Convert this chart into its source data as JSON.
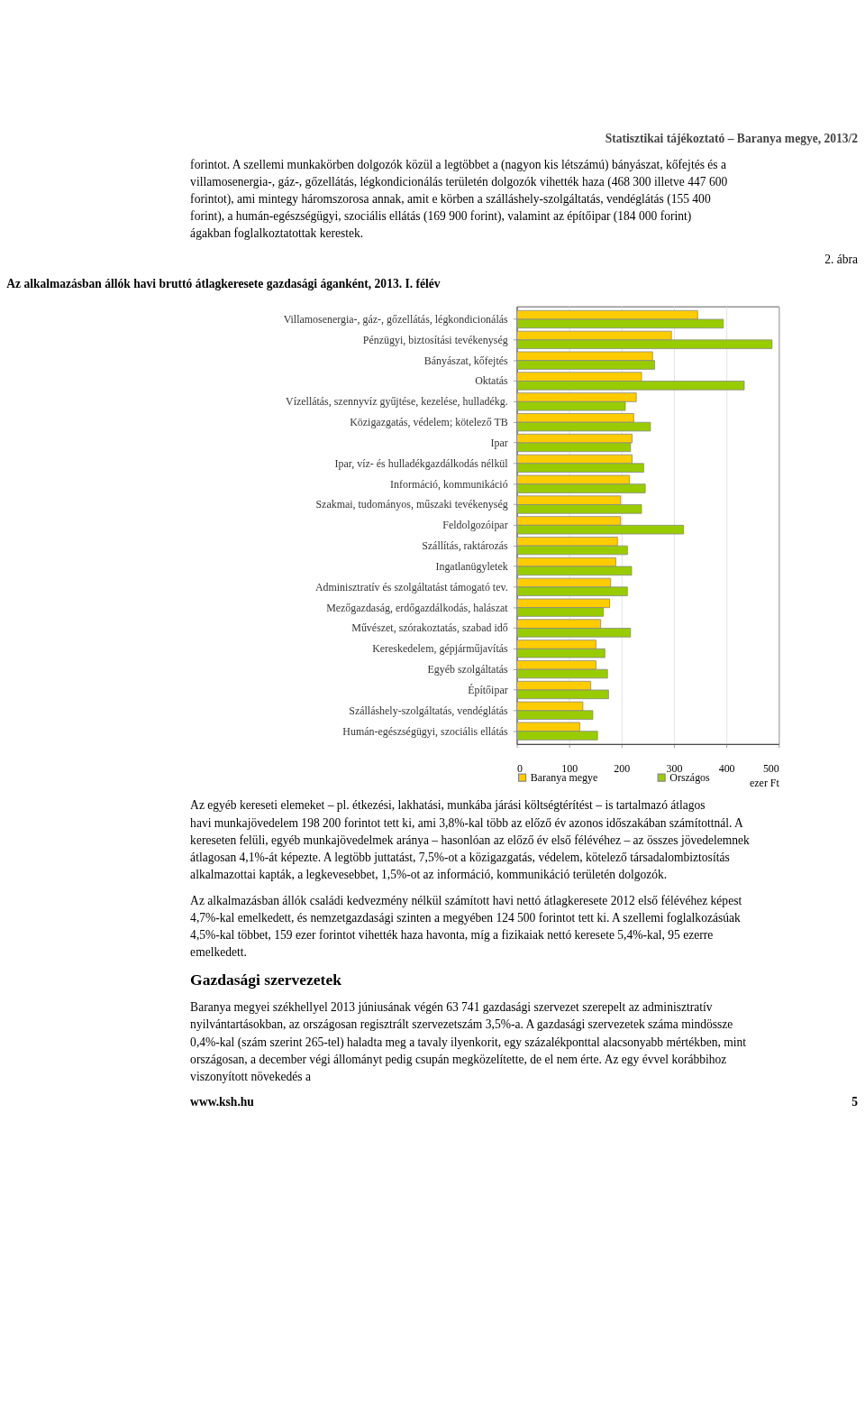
{
  "chart_data": {
    "type": "bar",
    "orientation": "horizontal",
    "title": "Az alkalmazásban állók havi bruttó átlagkeresete gazdasági áganként, 2013. I. félév",
    "categories": [
      "Villamosenergia-, gáz-, gőzellátás, légkondicionálás",
      "Pénzügyi, biztosítási tevékenység",
      "Bányászat, kőfejtés",
      "Oktatás",
      "Vízellátás, szennyvíz gyűjtése, kezelése, hulladékg.",
      "Közigazgatás, védelem; kötelező TB",
      "Ipar",
      "Ipar, víz- és hulladékgazdálkodás nélkül",
      "Információ, kommunikáció",
      "Szakmai, tudományos, műszaki tevékenység",
      "Feldolgozóipar",
      "Szállítás, raktározás",
      "Ingatlanügyletek",
      "Adminisztratív és szolgáltatást támogató tev.",
      "Mezőgazdaság, erdőgazdálkodás, halászat",
      "Művészet, szórakoztatás, szabad idő",
      "Kereskedelem, gépjárműjavítás",
      "Egyéb szolgáltatás",
      "Építőipar",
      "Szálláshely-szolgáltatás, vendéglátás",
      "Humán-egészségügyi, szociális ellátás"
    ],
    "series": [
      {
        "name": "Baranya megye",
        "color": "#ffcc00",
        "values": [
          345,
          295,
          259,
          238,
          228,
          223,
          220,
          220,
          215,
          198,
          198,
          192,
          189,
          179,
          177,
          160,
          151,
          151,
          141,
          126,
          120
        ]
      },
      {
        "name": "Országos",
        "color": "#99cc00",
        "values": [
          394,
          487,
          263,
          434,
          207,
          255,
          217,
          242,
          245,
          238,
          318,
          211,
          219,
          211,
          165,
          217,
          168,
          173,
          175,
          145,
          154
        ]
      }
    ],
    "xlim": [
      0,
      500
    ],
    "xticks": [
      0,
      100,
      200,
      300,
      400,
      500
    ],
    "xlabel": "ezer Ft",
    "grid": "x",
    "legend": "bottom",
    "annotations": [
      "Statisztikai tájékoztató – Baranya megye, 2013/2",
      "forintot. A szellemi munkakörben dolgozók közül a legtöbbet a (nagyon kis létszámú) bányászat, kőfejtés és a villamosenergia-, gáz-, gőzellátás, légkondicionálás területén dolgozók vihették haza (468 300 illetve 447 600 forintot), ami mintegy háromszorosa annak, amit e körben a szálláshely-szolgáltatás, vendéglátás (155 400 forint), a humán-egészségügyi, szociális ellátás (169 900 forint), valamint az építőipar (184 000 forint) ágakban foglalkoztatottak kerestek.",
      "2. ábra",
      "Az egyéb kereseti elemeket – pl. étkezési, lakhatási, munkába járási költségtérítést – is tartalmazó átlagos havi munkajövedelem 198 200 forintot tett ki, ami 3,8%-kal több az előző év azonos időszakában számítottnál. A kereseten felüli, egyéb munkajövedelmek aránya – hasonlóan az előző év első félévéhez – az összes jövedelemnek átlagosan 4,1%-át képezte. A legtöbb juttatást, 7,5%-ot a közigazgatás, védelem, kötelező társadalombiztosítás alkalmazottai kapták, a legkevesebbet, 1,5%-ot az információ, kommunikáció területén dolgozók.",
      "Az alkalmazásban állók családi kedvezmény nélkül számított havi nettó átlagkeresete 2012 első félévéhez képest 4,7%-kal emelkedett, és nemzetgazdasági szinten a megyében 124 500 forintot tett ki. A szellemi foglalkozásúak 4,5%-kal többet, 159 ezer forintot vihették haza havonta, míg a fizikaiak nettó keresete 5,4%-kal, 95 ezerre emelkedett.",
      "Gazdasági szervezetek",
      "Baranya megyei székhellyel 2013 júniusának végén 63 741 gazdasági szervezet szerepelt az adminisztratív nyilvántartásokban, az országosan regisztrált szervezetszám 3,5%-a. A gazdasági szervezetek száma mindössze 0,4%-kal (szám szerint 265-tel) haladta meg a tavaly ilyenkorit, egy százalékponttal alacsonyabb mértékben, mint országosan, a december végi állományt pedig csupán megközelítette, de el nem érte. Az egy évvel korábbihoz viszonyított növekedés a",
      "www.ksh.hu",
      "5"
    ]
  }
}
